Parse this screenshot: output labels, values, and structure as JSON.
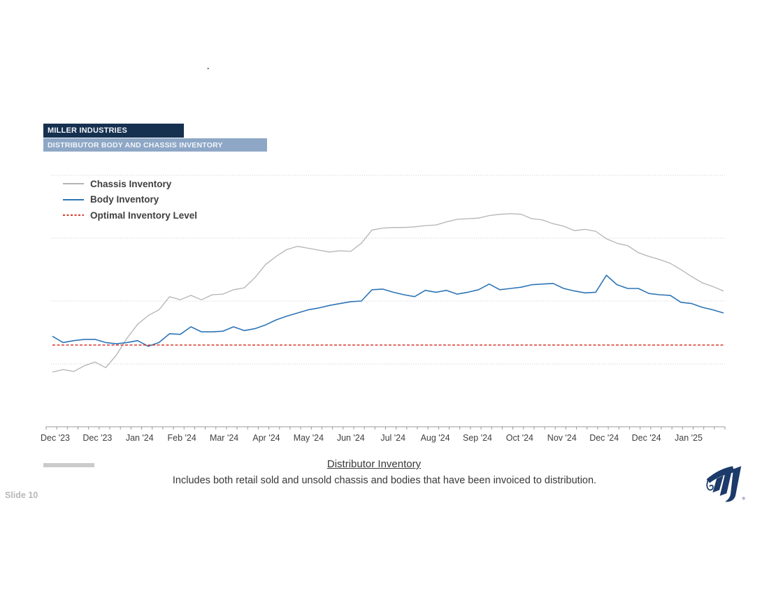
{
  "page": {
    "background": "#ffffff",
    "stray_mark": "."
  },
  "header": {
    "company": "MILLER INDUSTRIES",
    "company_bg": "#16304f",
    "title": "DISTRIBUTOR BODY AND CHASSIS INVENTORY",
    "title_bg": "#8ea7c6"
  },
  "chart_data": {
    "type": "line",
    "title": "Distributor Body and Chassis Inventory",
    "x_tick_labels": [
      "Dec '23",
      "Dec '23",
      "Jan '24",
      "Feb '24",
      "Mar '24",
      "Apr '24",
      "May '24",
      "Jun '24",
      "Jul '24",
      "Aug '24",
      "Sep '24",
      "Oct '24",
      "Nov '24",
      "Dec '24",
      "Dec '24",
      "Jan '25"
    ],
    "x_frequency": "weekly",
    "xlabel": "",
    "ylabel": "",
    "y_axis_unlabeled": true,
    "y_units": "relative inventory level (unlabeled gridline units)",
    "ylim": [
      0,
      4.2
    ],
    "y_gridline_values": [
      1,
      2,
      3,
      4
    ],
    "gridline_style": "dotted horizontal",
    "legend_position": "top-left",
    "axis_color": "#9a9a9a",
    "gridline_color": "#c9c9c9",
    "series": [
      {
        "name": "Chassis Inventory",
        "color": "#b4b4b4",
        "style": "solid",
        "values": [
          0.87,
          0.91,
          0.88,
          0.97,
          1.03,
          0.94,
          1.14,
          1.41,
          1.63,
          1.77,
          1.86,
          2.07,
          2.02,
          2.09,
          2.02,
          2.1,
          2.11,
          2.18,
          2.21,
          2.37,
          2.58,
          2.71,
          2.82,
          2.87,
          2.84,
          2.81,
          2.78,
          2.8,
          2.79,
          2.92,
          3.13,
          3.16,
          3.17,
          3.17,
          3.18,
          3.2,
          3.21,
          3.26,
          3.3,
          3.31,
          3.32,
          3.36,
          3.38,
          3.39,
          3.38,
          3.31,
          3.29,
          3.23,
          3.19,
          3.12,
          3.14,
          3.11,
          2.99,
          2.92,
          2.88,
          2.77,
          2.71,
          2.66,
          2.6,
          2.5,
          2.39,
          2.29,
          2.23,
          2.16
        ]
      },
      {
        "name": "Body Inventory",
        "color": "#2e75b6",
        "style": "solid",
        "values": [
          1.44,
          1.34,
          1.37,
          1.39,
          1.39,
          1.34,
          1.32,
          1.34,
          1.37,
          1.28,
          1.34,
          1.48,
          1.47,
          1.59,
          1.51,
          1.51,
          1.52,
          1.59,
          1.53,
          1.56,
          1.62,
          1.7,
          1.76,
          1.81,
          1.86,
          1.89,
          1.93,
          1.96,
          1.99,
          2.0,
          2.18,
          2.19,
          2.14,
          2.1,
          2.07,
          2.17,
          2.14,
          2.17,
          2.11,
          2.14,
          2.18,
          2.27,
          2.18,
          2.2,
          2.22,
          2.26,
          2.27,
          2.28,
          2.2,
          2.16,
          2.13,
          2.14,
          2.41,
          2.26,
          2.2,
          2.2,
          2.12,
          2.1,
          2.09,
          1.98,
          1.96,
          1.9,
          1.86,
          1.81
        ]
      },
      {
        "name": "Optimal Inventory Level",
        "color": "#d63a2f",
        "style": "dashed",
        "constant_value": 1.3
      }
    ]
  },
  "footer": {
    "heading": "Distributor Inventory",
    "note": "Includes both retail sold and unsold chassis and bodies that have been invoiced to distribution.",
    "slide_label": "Slide 10"
  },
  "logo": {
    "name": "Miller Industries logo",
    "color": "#1c3a6a",
    "registered_mark": "®"
  }
}
